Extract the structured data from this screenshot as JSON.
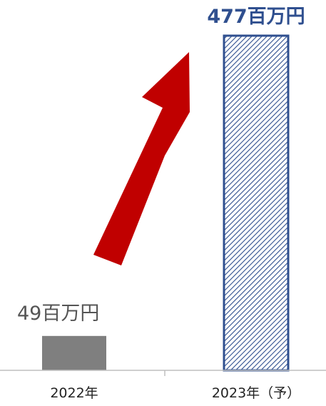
{
  "chart_data": {
    "type": "bar",
    "categories": [
      "2022年",
      "2023年（予）"
    ],
    "values": [
      49,
      477
    ],
    "data_labels": [
      "49百万円",
      "477百万円"
    ],
    "unit": "百万円",
    "title": "",
    "xlabel": "",
    "ylabel": "",
    "ylim": [
      0,
      477
    ],
    "grid": false,
    "legend": "none",
    "colors": {
      "bar_2022": "#7f7f7f",
      "bar_2023_border": "#2F4F8F",
      "bar_2023_hatch": "#2F4F8F",
      "label_2023": "#2F4F8F",
      "arrow": "#C00000",
      "axis": "#bfbfbf"
    },
    "annotations": [
      {
        "type": "growth-arrow",
        "color": "#C00000",
        "direction": "up-right"
      }
    ]
  }
}
